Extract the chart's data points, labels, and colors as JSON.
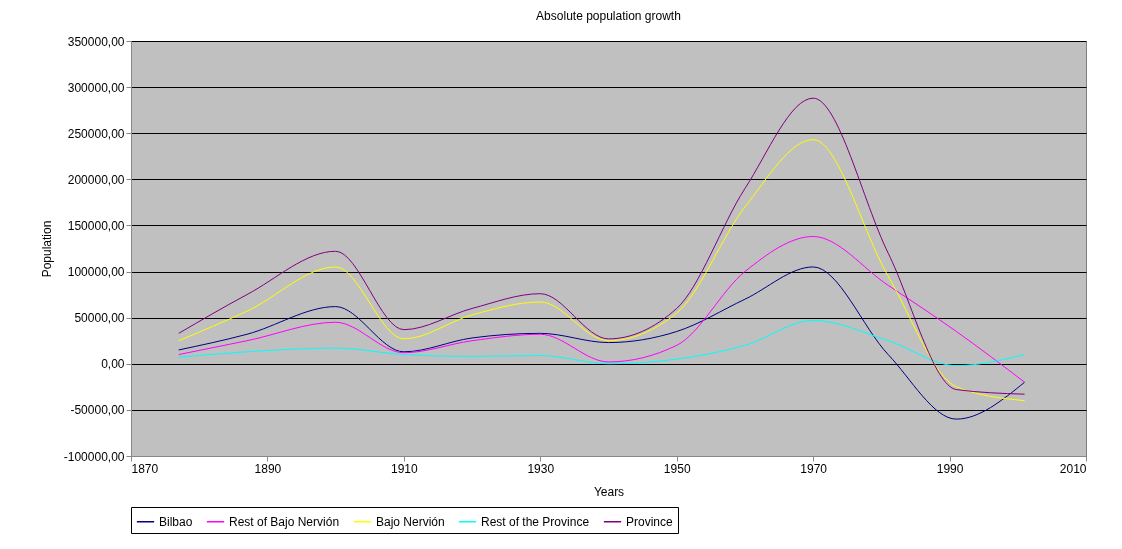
{
  "chart_data": {
    "type": "line",
    "title": "Absolute population growth",
    "xlabel": "Years",
    "ylabel": "Population",
    "x": [
      1877,
      1887,
      1900,
      1910,
      1920,
      1930,
      1940,
      1950,
      1960,
      1970,
      1981,
      1991,
      2001
    ],
    "series": [
      {
        "name": "Bilbao",
        "color": "#000080",
        "values": [
          15000,
          32000,
          62000,
          13000,
          28000,
          33000,
          23000,
          35000,
          70000,
          105000,
          10000,
          -60000,
          -20000
        ]
      },
      {
        "name": "Rest of Bajo Nervión",
        "color": "#ff00ff",
        "values": [
          10000,
          25000,
          45000,
          12000,
          25000,
          32000,
          2000,
          20000,
          100000,
          138000,
          85000,
          35000,
          -20000
        ]
      },
      {
        "name": "Bajo Nervión",
        "color": "#ffff00",
        "values": [
          25000,
          57000,
          105000,
          27000,
          53000,
          67000,
          25000,
          55000,
          170000,
          243000,
          95000,
          -25000,
          -40000
        ]
      },
      {
        "name": "Rest of the Province",
        "color": "#00ffff",
        "values": [
          7000,
          13000,
          17000,
          10000,
          8000,
          9000,
          0,
          5000,
          20000,
          47000,
          25000,
          -2000,
          10000
        ]
      },
      {
        "name": "Province",
        "color": "#800080",
        "values": [
          33000,
          75000,
          122000,
          37000,
          60000,
          76000,
          27000,
          60000,
          190000,
          288000,
          120000,
          -28000,
          -33000
        ]
      }
    ],
    "xlim": [
      1870,
      2010
    ],
    "xticks": [
      1870,
      1890,
      1910,
      1930,
      1950,
      1970,
      1990,
      2010
    ],
    "ylim": [
      -100000,
      350000
    ],
    "yticks": [
      {
        "value": -100000,
        "label": "-100000,00"
      },
      {
        "value": -50000,
        "label": "-50000,00"
      },
      {
        "value": 0,
        "label": "0,00"
      },
      {
        "value": 50000,
        "label": "50000,00"
      },
      {
        "value": 100000,
        "label": "100000,00"
      },
      {
        "value": 150000,
        "label": "150000,00"
      },
      {
        "value": 200000,
        "label": "200000,00"
      },
      {
        "value": 250000,
        "label": "250000,00"
      },
      {
        "value": 300000,
        "label": "300000,00"
      },
      {
        "value": 350000,
        "label": "350000,00"
      }
    ],
    "grid": "y",
    "legend": "bottom",
    "marker": "none",
    "line_style": "solid"
  }
}
